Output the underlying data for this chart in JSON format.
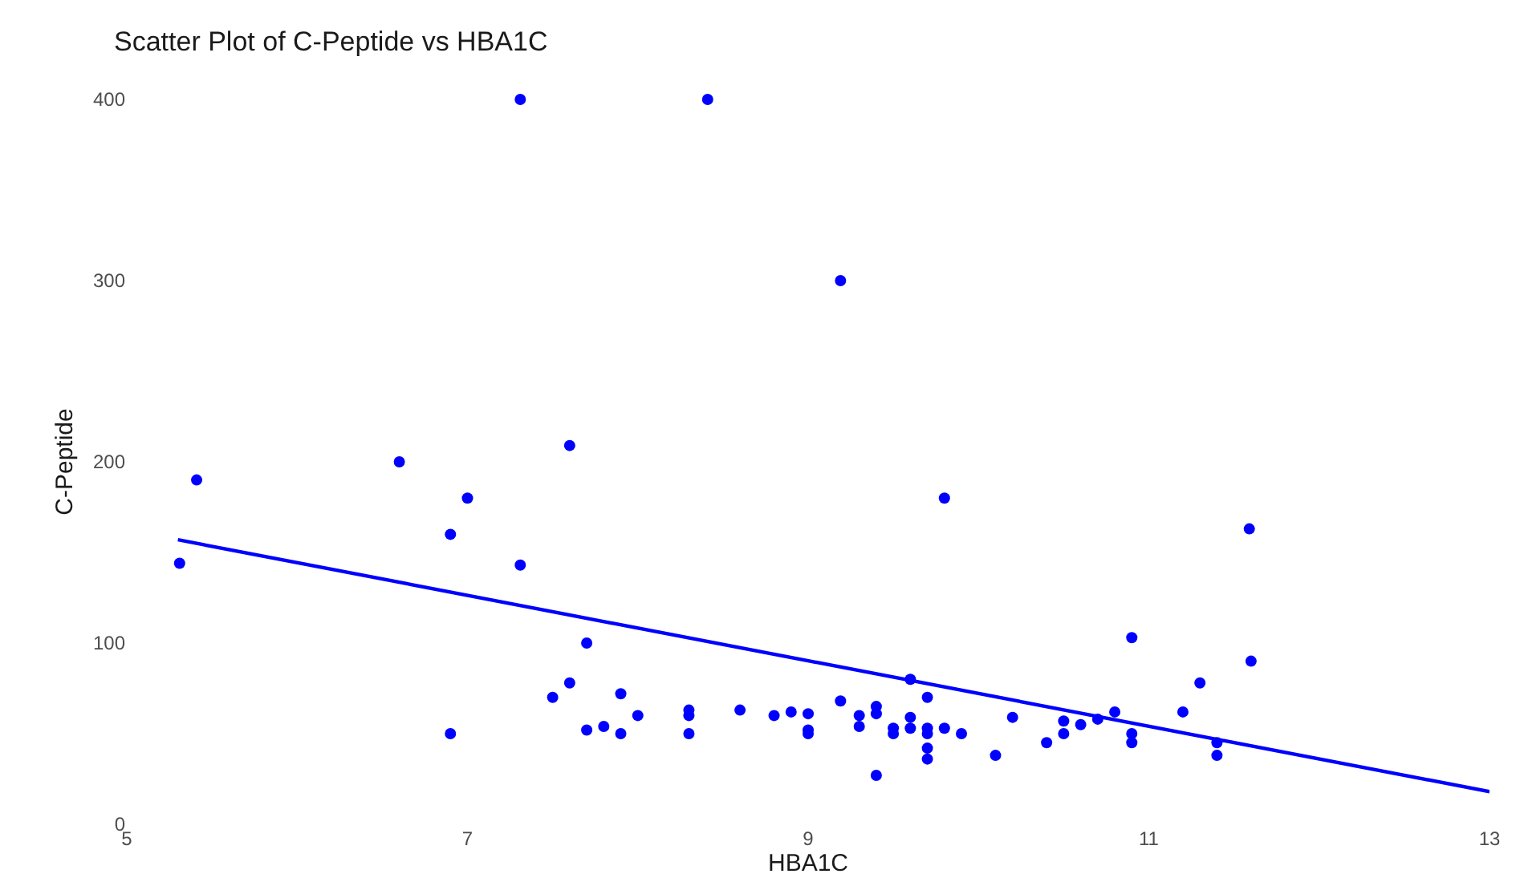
{
  "chart_data": {
    "type": "scatter",
    "title": "Scatter Plot of C-Peptide vs HBA1C",
    "xlabel": "HBA1C",
    "ylabel": "C-Peptide",
    "xlim": [
      5,
      13
    ],
    "xticks": [
      5,
      7,
      9,
      11,
      13
    ],
    "ylim": [
      0,
      400
    ],
    "yticks": [
      0,
      100,
      200,
      300,
      400
    ],
    "grid": false,
    "series": [
      {
        "marker": "circle",
        "color": "#0000ff",
        "x": [
          5.31,
          5.41,
          6.6,
          6.9,
          7.0,
          7.31,
          7.31,
          7.6,
          8.41,
          9.19,
          9.8,
          11.59,
          7.7,
          7.6,
          7.5,
          7.9,
          8.0,
          8.3,
          8.3,
          8.6,
          8.8,
          8.9,
          6.9,
          7.7,
          7.8,
          7.9,
          8.3,
          9.0,
          9.0,
          9.0,
          9.19,
          9.3,
          9.3,
          9.4,
          9.4,
          9.4,
          9.5,
          9.5,
          9.6,
          9.6,
          9.6,
          9.7,
          9.7,
          9.7,
          9.7,
          9.7,
          9.8,
          9.9,
          10.1,
          10.2,
          10.4,
          10.5,
          10.5,
          10.6,
          10.7,
          10.8,
          10.9,
          10.9,
          10.9,
          11.2,
          11.3,
          11.4,
          11.4,
          11.6
        ],
        "values": [
          144,
          190,
          200,
          160,
          180,
          400,
          143,
          209,
          400,
          300,
          180,
          163,
          100,
          78,
          70,
          72,
          60,
          63,
          60,
          63,
          60,
          62,
          50,
          52,
          54,
          50,
          50,
          61,
          52,
          50,
          68,
          60,
          54,
          65,
          61,
          27,
          53,
          50,
          80,
          59,
          53,
          70,
          53,
          50,
          42,
          36,
          53,
          50,
          38,
          59,
          45,
          57,
          50,
          55,
          58,
          62,
          103,
          50,
          45,
          62,
          78,
          45,
          38,
          90
        ]
      },
      {
        "type": "line",
        "marker": "none",
        "color": "#0000ff",
        "x": [
          5.3,
          13
        ],
        "values": [
          157,
          18
        ]
      }
    ]
  }
}
